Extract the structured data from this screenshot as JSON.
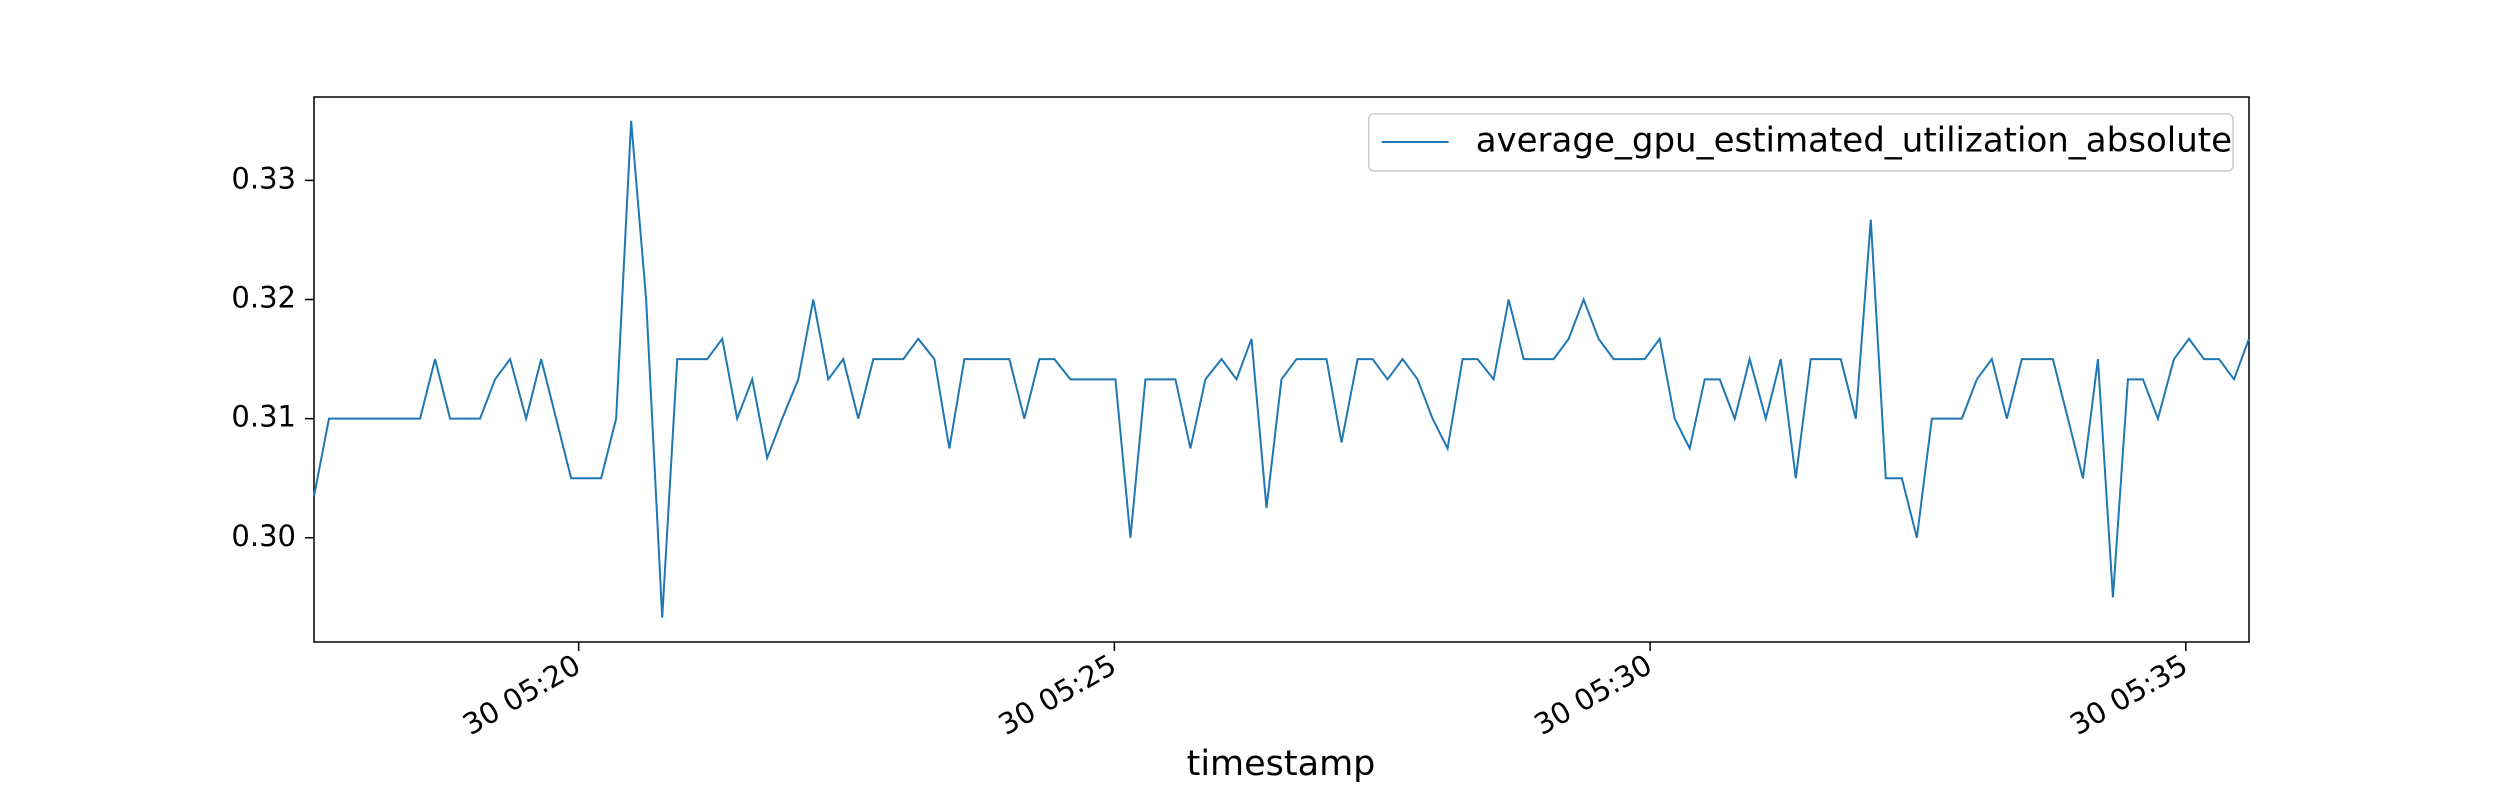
{
  "chart_data": {
    "type": "line",
    "x_label": "timestamp",
    "x": [
      17.53,
      17.67,
      17.81,
      17.95,
      18.09,
      18.24,
      18.38,
      18.52,
      18.66,
      18.8,
      18.94,
      19.08,
      19.22,
      19.36,
      19.51,
      19.65,
      19.79,
      19.93,
      20.07,
      20.21,
      20.35,
      20.49,
      20.63,
      20.78,
      20.92,
      21.06,
      21.2,
      21.34,
      21.48,
      21.62,
      21.76,
      21.9,
      22.05,
      22.19,
      22.33,
      22.47,
      22.61,
      22.75,
      22.89,
      23.03,
      23.17,
      23.32,
      23.46,
      23.6,
      23.74,
      23.88,
      24.02,
      24.16,
      24.3,
      24.44,
      24.59,
      24.73,
      24.87,
      25.01,
      25.15,
      25.29,
      25.43,
      25.57,
      25.71,
      25.85,
      26.0,
      26.14,
      26.28,
      26.42,
      26.56,
      26.7,
      26.84,
      26.98,
      27.12,
      27.27,
      27.41,
      27.55,
      27.69,
      27.83,
      27.97,
      28.11,
      28.25,
      28.39,
      28.54,
      28.68,
      28.82,
      28.96,
      29.1,
      29.24,
      29.38,
      29.52,
      29.66,
      29.81,
      29.95,
      30.09,
      30.23,
      30.37,
      30.51,
      30.65,
      30.79,
      30.93,
      31.08,
      31.22,
      31.36,
      31.5,
      31.64,
      31.78,
      31.92,
      32.06,
      32.2,
      32.35,
      32.49,
      32.63,
      32.77,
      32.91,
      33.05,
      33.19,
      33.33,
      33.47,
      33.62,
      33.76,
      33.9,
      34.04,
      34.18,
      34.32,
      34.46,
      34.6,
      34.74,
      34.89,
      35.03,
      35.17,
      35.31,
      35.45,
      35.59
    ],
    "series": [
      {
        "name": "average_gpu_estimated_utilization_absolute",
        "color": "#1f77b4",
        "values": [
          0.3035,
          0.31,
          0.31,
          0.31,
          0.31,
          0.31,
          0.31,
          0.31,
          0.315,
          0.31,
          0.31,
          0.31,
          0.3133,
          0.315,
          0.31,
          0.315,
          0.31,
          0.305,
          0.305,
          0.305,
          0.31,
          0.335,
          0.32,
          0.2933,
          0.315,
          0.315,
          0.315,
          0.3167,
          0.31,
          0.3133,
          0.3067,
          0.31,
          0.3133,
          0.32,
          0.3133,
          0.315,
          0.31,
          0.315,
          0.315,
          0.315,
          0.3167,
          0.315,
          0.3075,
          0.315,
          0.315,
          0.315,
          0.315,
          0.31,
          0.315,
          0.315,
          0.3133,
          0.3133,
          0.3133,
          0.3133,
          0.3,
          0.3133,
          0.3133,
          0.3133,
          0.3075,
          0.3133,
          0.315,
          0.3133,
          0.3167,
          0.3025,
          0.3133,
          0.315,
          0.315,
          0.315,
          0.308,
          0.315,
          0.315,
          0.3133,
          0.315,
          0.3133,
          0.31,
          0.3075,
          0.315,
          0.315,
          0.3133,
          0.32,
          0.315,
          0.315,
          0.315,
          0.3167,
          0.32,
          0.3167,
          0.315,
          0.315,
          0.315,
          0.3167,
          0.31,
          0.3075,
          0.3133,
          0.3133,
          0.31,
          0.315,
          0.31,
          0.315,
          0.305,
          0.315,
          0.315,
          0.315,
          0.31,
          0.3267,
          0.305,
          0.305,
          0.3,
          0.31,
          0.31,
          0.31,
          0.3133,
          0.315,
          0.31,
          0.315,
          0.315,
          0.315,
          0.31,
          0.305,
          0.315,
          0.295,
          0.3133,
          0.3133,
          0.31,
          0.315,
          0.3167,
          0.315,
          0.315,
          0.3133,
          0.3167
        ]
      }
    ],
    "xlim": [
      17.53,
      35.59
    ],
    "xticks": [
      {
        "value": 20,
        "label": "30 05:20"
      },
      {
        "value": 25,
        "label": "30 05:25"
      },
      {
        "value": 30,
        "label": "30 05:30"
      },
      {
        "value": 35,
        "label": "30 05:35"
      }
    ],
    "ylim": [
      0.29125,
      0.337
    ],
    "yticks": [
      {
        "value": 0.3,
        "label": "0.30"
      },
      0.31,
      0.32,
      0.33
    ],
    "legend": "upper-right"
  }
}
